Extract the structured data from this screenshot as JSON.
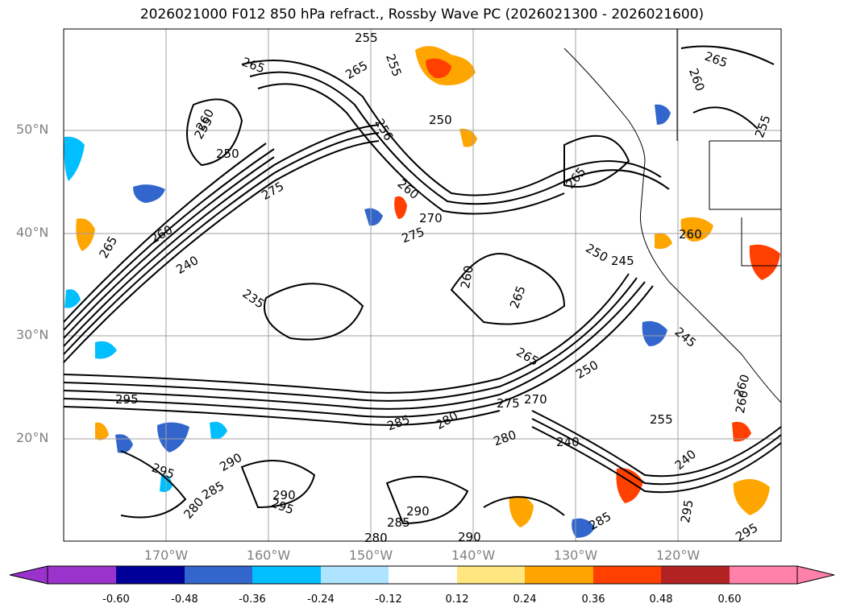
{
  "title": "2026021000 F012 850 hPa refract., Rossby Wave PC (2026021300 - 2026021600)",
  "lat_labels": [
    "50°N",
    "40°N",
    "30°N",
    "20°N"
  ],
  "lon_labels": [
    "170°W",
    "160°W",
    "150°W",
    "140°W",
    "130°W",
    "120°W"
  ],
  "colorbar": {
    "ticks": [
      "-0.60",
      "-0.48",
      "-0.36",
      "-0.24",
      "-0.12",
      "0.12",
      "0.24",
      "0.36",
      "0.48",
      "0.60"
    ],
    "colors": [
      "#9933cc",
      "#000099",
      "#3366cc",
      "#00bfff",
      "#aee4ff",
      "#ffffff",
      "#ffe680",
      "#ffa500",
      "#ff4000",
      "#b22222",
      "#ff80a8",
      "#ff80a8"
    ]
  },
  "contour_labels": [
    "255",
    "265",
    "265",
    "255",
    "260",
    "250",
    "255",
    "250",
    "256",
    "260",
    "265",
    "270",
    "275",
    "260",
    "265",
    "245",
    "250",
    "260",
    "255",
    "260",
    "265",
    "260",
    "240",
    "235",
    "275",
    "265",
    "275",
    "270",
    "295",
    "285",
    "280",
    "240",
    "255",
    "240",
    "250",
    "245",
    "260",
    "290",
    "295",
    "285",
    "280",
    "290",
    "295",
    "280",
    "285",
    "290",
    "290",
    "280",
    "295",
    "295",
    "285",
    "260",
    "265"
  ]
}
